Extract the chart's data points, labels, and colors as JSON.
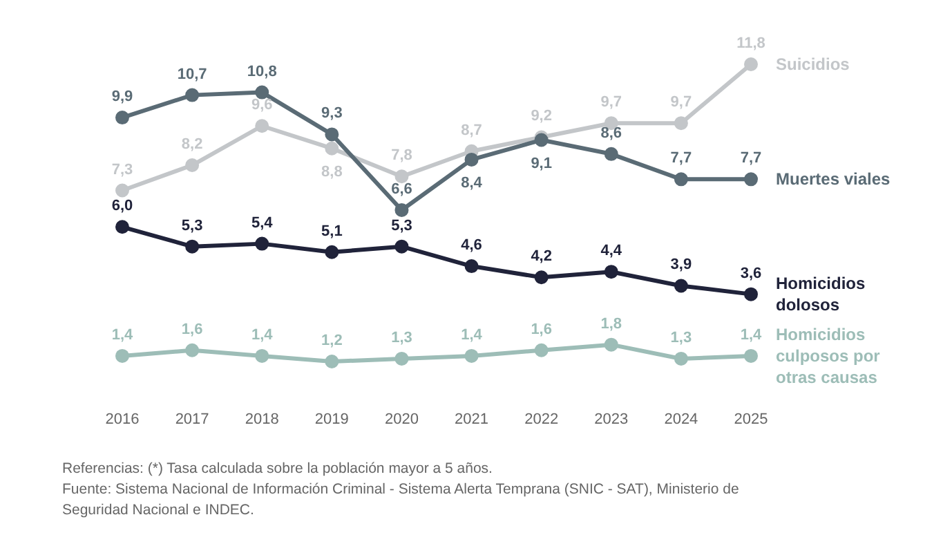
{
  "chart_data": {
    "type": "line",
    "categories": [
      "2016",
      "2017",
      "2018",
      "2019",
      "2020",
      "2021",
      "2022",
      "2023",
      "2024",
      "2025"
    ],
    "series": [
      {
        "name": "Suicidios",
        "color": "#c3c6c9",
        "values": [
          7.3,
          8.2,
          9.6,
          8.8,
          7.8,
          8.7,
          9.2,
          9.7,
          9.7,
          11.8
        ],
        "value_labels": [
          "7,3",
          "8,2",
          "9,6",
          "8,8",
          "7,8",
          "8,7",
          "9,2",
          "9,7",
          "9,7",
          "11,8"
        ]
      },
      {
        "name": "Muertes viales",
        "color": "#5a6b75",
        "values": [
          9.9,
          10.7,
          10.8,
          9.3,
          6.6,
          8.4,
          9.1,
          8.6,
          7.7,
          7.7
        ],
        "value_labels": [
          "9,9",
          "10,7",
          "10,8",
          "9,3",
          "6,6",
          "8,4",
          "9,1",
          "8,6",
          "7,7",
          "7,7"
        ]
      },
      {
        "name": "Homicidios dolosos",
        "color": "#20233a",
        "values": [
          6.0,
          5.3,
          5.4,
          5.1,
          5.3,
          4.6,
          4.2,
          4.4,
          3.9,
          3.6
        ],
        "value_labels": [
          "6,0",
          "5,3",
          "5,4",
          "5,1",
          "5,3",
          "4,6",
          "4,2",
          "4,4",
          "3,9",
          "3,6"
        ]
      },
      {
        "name": "Homicidios culposos por otras causas",
        "color": "#9dbdb7",
        "values": [
          1.4,
          1.6,
          1.4,
          1.2,
          1.3,
          1.4,
          1.6,
          1.8,
          1.3,
          1.4
        ],
        "value_labels": [
          "1,4",
          "1,6",
          "1,4",
          "1,2",
          "1,3",
          "1,4",
          "1,6",
          "1,8",
          "1,3",
          "1,4"
        ]
      }
    ],
    "marker": "circle",
    "line_style": "solid",
    "grid": false,
    "annotations": [
      "Referencias: (*) Tasa calculada sobre la población mayor a 5 años.",
      "Fuente: Sistema Nacional de Información Criminal - Sistema Alerta Temprana (SNIC - SAT), Ministerio de",
      "Seguridad Nacional e INDEC."
    ]
  }
}
